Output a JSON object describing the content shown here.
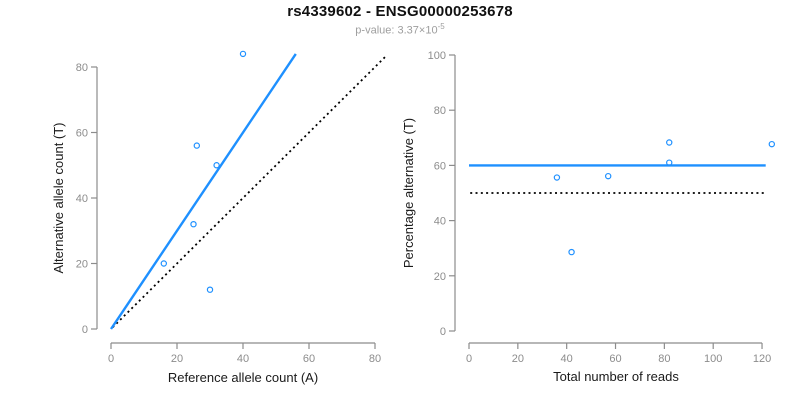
{
  "header": {
    "title": "rs4339602 - ENSG00000253678",
    "subtitle_base": "p-value: 3.37×10",
    "subtitle_exponent": "-5"
  },
  "colors": {
    "accent_blue": "#1E90FF",
    "reference_black": "#000000",
    "tick_gray": "#8c8c8c",
    "label_black": "#1a1a1a"
  },
  "chart_data": [
    {
      "type": "scatter",
      "xlabel": "Reference allele count (A)",
      "ylabel": "Alternative allele count (T)",
      "xlim": [
        0,
        80
      ],
      "ylim": [
        0,
        84
      ],
      "xticks": [
        0,
        20,
        40,
        60,
        80
      ],
      "yticks": [
        0,
        20,
        40,
        60,
        80
      ],
      "grid": false,
      "legend": null,
      "points": [
        [
          16,
          20
        ],
        [
          25,
          32
        ],
        [
          26,
          56
        ],
        [
          30,
          12
        ],
        [
          32,
          50
        ],
        [
          40,
          84
        ]
      ],
      "lines": [
        {
          "name": "identity-line",
          "x1": 0.5,
          "y1": 0.5,
          "x2": 83.5,
          "y2": 83.5,
          "style": "dotted",
          "color": "#000000"
        },
        {
          "name": "fit-line",
          "x1": 0,
          "y1": 0,
          "x2": 56,
          "y2": 84,
          "style": "solid",
          "color": "#1E90FF"
        }
      ]
    },
    {
      "type": "scatter",
      "xlabel": "Total number of reads",
      "ylabel": "Percentage alternative (T)",
      "xlim": [
        0,
        124
      ],
      "ylim": [
        0,
        100
      ],
      "xticks": [
        0,
        20,
        40,
        60,
        80,
        100,
        120
      ],
      "yticks": [
        0,
        20,
        40,
        60,
        80,
        100
      ],
      "grid": false,
      "legend": null,
      "points": [
        [
          36,
          55.6
        ],
        [
          42,
          28.6
        ],
        [
          57,
          56.1
        ],
        [
          82,
          61.0
        ],
        [
          82,
          68.3
        ],
        [
          124,
          67.7
        ]
      ],
      "lines": [
        {
          "name": "reference-line",
          "x1": 0.5,
          "y1": 50,
          "x2": 121.5,
          "y2": 50,
          "style": "dotted",
          "color": "#000000"
        },
        {
          "name": "fit-line",
          "x1": 0,
          "y1": 60,
          "x2": 121.5,
          "y2": 60,
          "style": "solid",
          "color": "#1E90FF"
        }
      ]
    }
  ]
}
